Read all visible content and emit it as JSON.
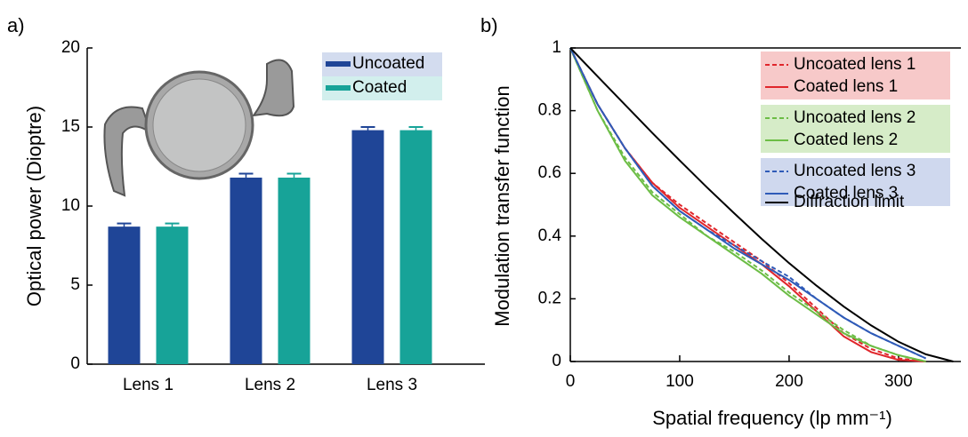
{
  "chart_data": [
    {
      "type": "bar",
      "panel_label": "a)",
      "y_label": "Optical power (Dioptre)",
      "categories": [
        "Lens 1",
        "Lens 2",
        "Lens 3"
      ],
      "series": [
        {
          "name": "Uncoated",
          "color": "#1f4597",
          "legend_bg": "#d3dcef",
          "values": [
            8.7,
            11.8,
            14.8
          ],
          "errors": [
            0.2,
            0.25,
            0.2
          ]
        },
        {
          "name": "Coated",
          "color": "#17a398",
          "legend_bg": "#d2efed",
          "values": [
            8.7,
            11.8,
            14.8
          ],
          "errors": [
            0.2,
            0.25,
            0.2
          ]
        }
      ],
      "ylim": [
        0,
        20
      ],
      "yticks": [
        0,
        5,
        10,
        15,
        20
      ]
    },
    {
      "type": "line",
      "panel_label": "b)",
      "y_label": "Modulation transfer function",
      "x_label": "Spatial frequency (lp mm⁻¹)",
      "x": [
        0,
        25,
        50,
        75,
        100,
        125,
        150,
        175,
        200,
        225,
        250,
        275,
        300,
        325,
        350
      ],
      "series": [
        {
          "name": "Uncoated lens 1",
          "color": "#e0262b",
          "dash": true,
          "values": [
            1,
            0.82,
            0.68,
            0.57,
            0.5,
            0.44,
            0.38,
            0.32,
            0.25,
            0.17,
            0.09,
            0.04,
            0.01,
            0,
            null
          ]
        },
        {
          "name": "Coated lens 1",
          "color": "#e0262b",
          "dash": false,
          "values": [
            1,
            0.82,
            0.68,
            0.57,
            0.49,
            0.43,
            0.37,
            0.31,
            0.24,
            0.16,
            0.08,
            0.03,
            0.005,
            0,
            null
          ]
        },
        {
          "name": "Uncoated lens 2",
          "color": "#6cbd45",
          "dash": true,
          "values": [
            1,
            0.8,
            0.65,
            0.54,
            0.47,
            0.4,
            0.35,
            0.29,
            0.22,
            0.16,
            0.1,
            0.05,
            0.02,
            0,
            null
          ]
        },
        {
          "name": "Coated lens 2",
          "color": "#6cbd45",
          "dash": false,
          "values": [
            1,
            0.8,
            0.64,
            0.53,
            0.46,
            0.4,
            0.34,
            0.28,
            0.21,
            0.15,
            0.09,
            0.05,
            0.02,
            0,
            null
          ]
        },
        {
          "name": "Uncoated lens 3",
          "color": "#2f5bb8",
          "dash": true,
          "values": [
            1,
            0.82,
            0.68,
            0.56,
            0.48,
            0.42,
            0.37,
            0.32,
            0.27,
            0.2,
            0.14,
            0.09,
            0.05,
            0.01,
            null
          ]
        },
        {
          "name": "Coated lens 3",
          "color": "#2f5bb8",
          "dash": false,
          "values": [
            1,
            0.82,
            0.68,
            0.56,
            0.48,
            0.42,
            0.36,
            0.31,
            0.26,
            0.2,
            0.14,
            0.09,
            0.05,
            0.01,
            null
          ]
        },
        {
          "name": "Diffraction limit",
          "color": "#000000",
          "dash": false,
          "values": [
            1,
            0.909,
            0.819,
            0.729,
            0.641,
            0.555,
            0.472,
            0.391,
            0.314,
            0.242,
            0.175,
            0.115,
            0.063,
            0.023,
            0
          ]
        }
      ],
      "xlim": [
        0,
        357
      ],
      "xticks": [
        0,
        100,
        200,
        300
      ],
      "ylim": [
        0,
        1
      ],
      "yticks": [
        0,
        0.2,
        0.4,
        0.6,
        0.8,
        1
      ]
    }
  ]
}
